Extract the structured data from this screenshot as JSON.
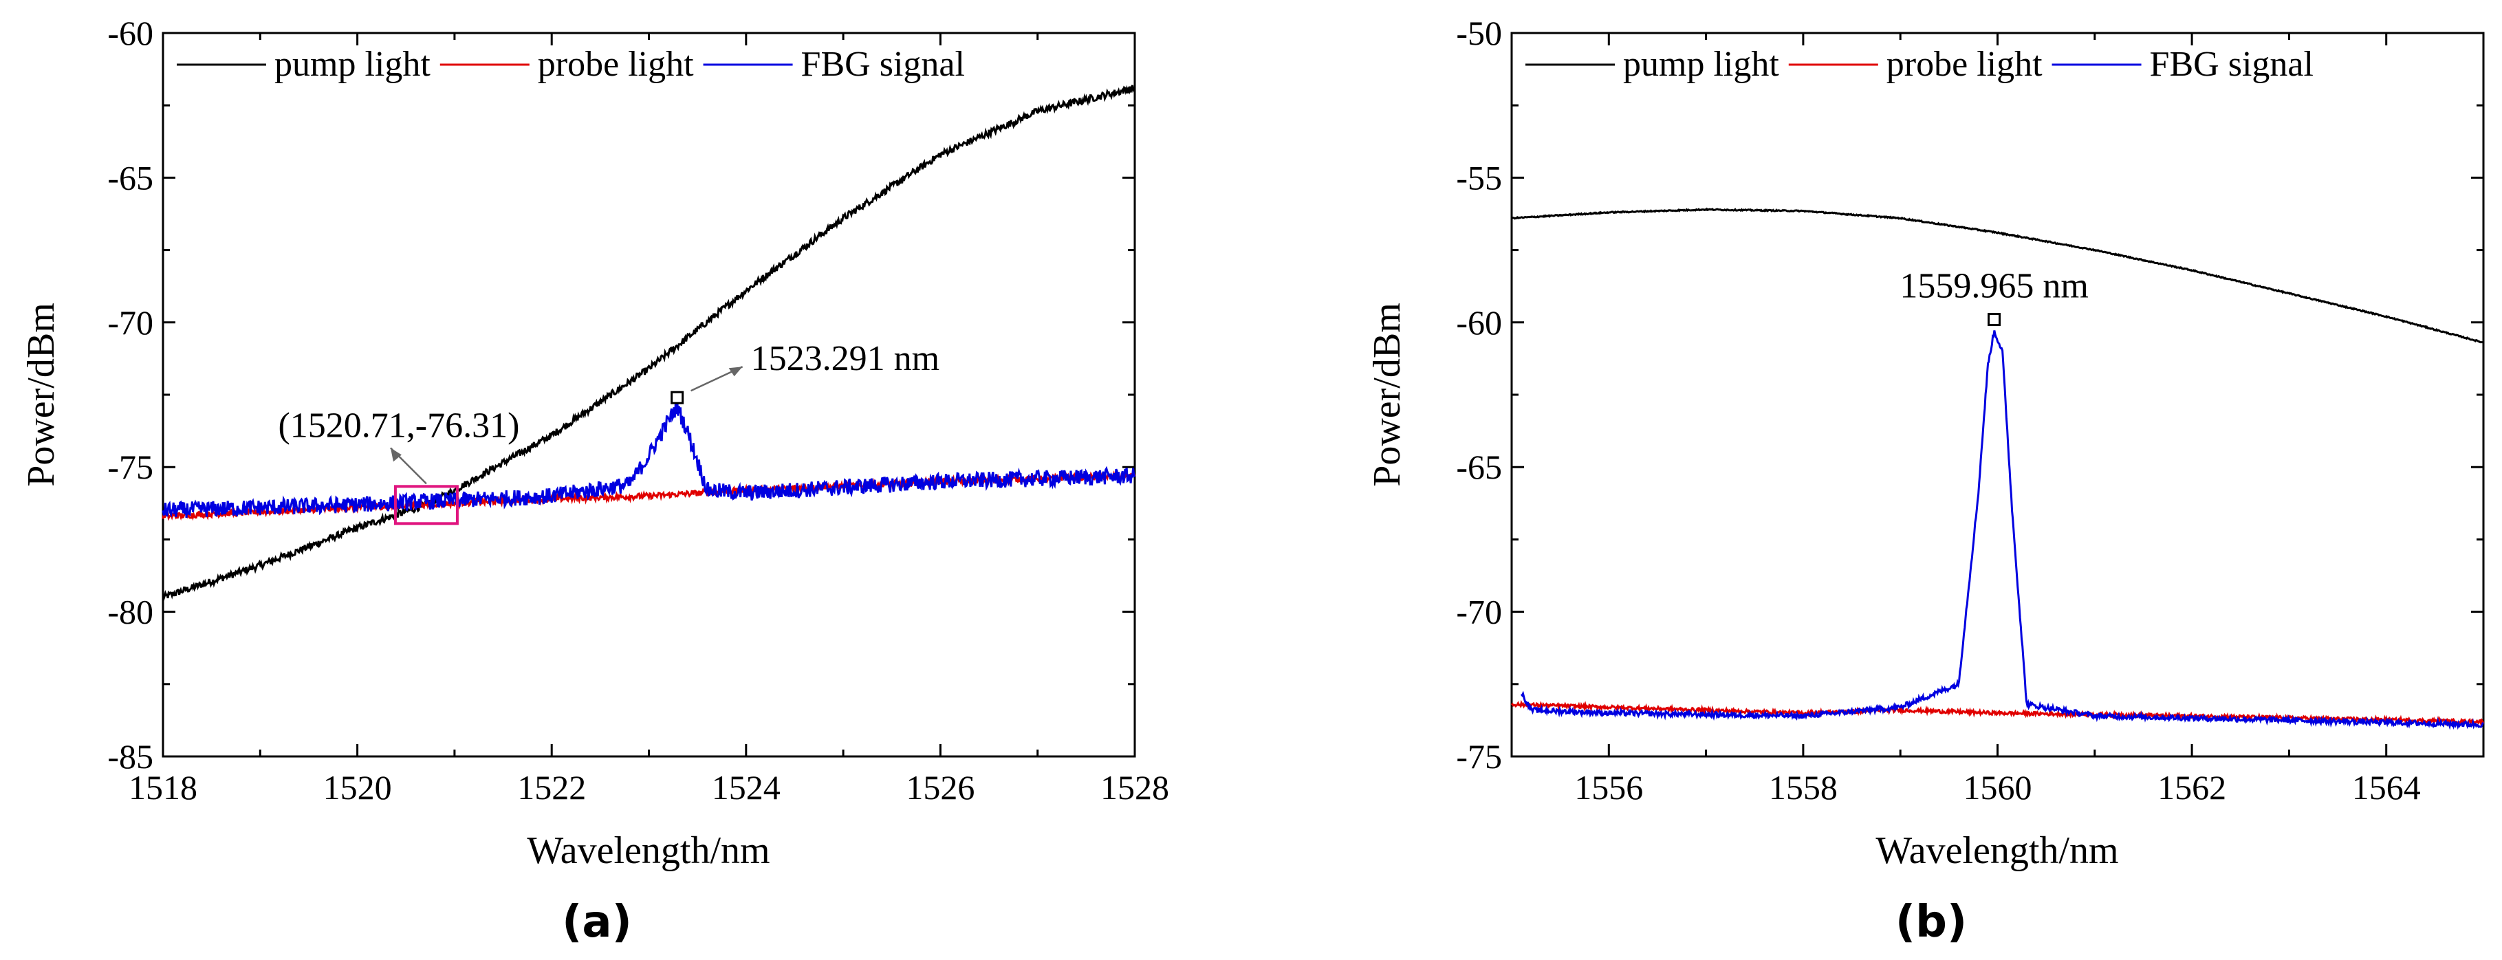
{
  "colors": {
    "pump": "#000000",
    "probe": "#e00000",
    "fbg": "#0000e0",
    "marker_box": "#e0157f",
    "arrow": "#666666"
  },
  "chart_data": [
    {
      "type": "line",
      "panel": "(a)",
      "xlabel": "Wavelength/nm",
      "ylabel": "Power/dBm",
      "xlim": [
        1518,
        1528
      ],
      "ylim": [
        -85,
        -60
      ],
      "xticks": [
        1518,
        1520,
        1522,
        1524,
        1526,
        1528
      ],
      "yticks": [
        -85,
        -80,
        -75,
        -70,
        -65,
        -60
      ],
      "legend": [
        "pump light",
        "probe light",
        "FBG signal"
      ],
      "series": [
        {
          "name": "pump light",
          "x": [
            1518,
            1519,
            1520,
            1520.71,
            1521,
            1522,
            1523,
            1524,
            1525,
            1526,
            1527,
            1528
          ],
          "y": [
            -79.5,
            -78.4,
            -77.1,
            -76.3,
            -75.8,
            -73.9,
            -71.6,
            -68.9,
            -66.4,
            -64.2,
            -62.7,
            -61.9
          ]
        },
        {
          "name": "probe light",
          "x": [
            1518,
            1520,
            1522,
            1523,
            1524,
            1526,
            1528
          ],
          "y": [
            -76.7,
            -76.4,
            -76.1,
            -76.0,
            -75.8,
            -75.5,
            -75.3
          ]
        },
        {
          "name": "FBG signal",
          "x": [
            1518,
            1520,
            1522,
            1522.8,
            1523.0,
            1523.2,
            1523.291,
            1523.4,
            1523.6,
            1524,
            1526,
            1528
          ],
          "y": [
            -76.5,
            -76.3,
            -76.0,
            -75.6,
            -74.6,
            -73.4,
            -72.9,
            -73.8,
            -75.8,
            -75.9,
            -75.5,
            -75.3
          ]
        }
      ],
      "annotations": [
        {
          "text": "1523.291 nm",
          "x": 1523.291,
          "y": -72.6
        },
        {
          "text": "(1520.71,-76.31)",
          "x": 1520.71,
          "y": -76.31
        }
      ]
    },
    {
      "type": "line",
      "panel": "(b)",
      "xlabel": "Wavelength/nm",
      "ylabel": "Power/dBm",
      "xlim": [
        1555,
        1565
      ],
      "ylim": [
        -75,
        -50
      ],
      "xticks": [
        1556,
        1558,
        1560,
        1562,
        1564
      ],
      "yticks": [
        -75,
        -70,
        -65,
        -60,
        -55,
        -50
      ],
      "legend": [
        "pump light",
        "probe light",
        "FBG signal"
      ],
      "series": [
        {
          "name": "pump light",
          "x": [
            1555,
            1556,
            1557,
            1558,
            1559,
            1560,
            1561,
            1562,
            1563,
            1564,
            1565
          ],
          "y": [
            -56.4,
            -56.2,
            -56.1,
            -56.15,
            -56.4,
            -56.9,
            -57.5,
            -58.2,
            -59.0,
            -59.8,
            -60.7
          ]
        },
        {
          "name": "probe light",
          "x": [
            1555,
            1556,
            1558,
            1559,
            1560,
            1562,
            1565
          ],
          "y": [
            -73.2,
            -73.3,
            -73.5,
            -73.4,
            -73.5,
            -73.6,
            -73.8
          ]
        },
        {
          "name": "FBG signal",
          "x": [
            1555.1,
            1555.2,
            1556,
            1558,
            1559,
            1559.6,
            1559.8,
            1559.9,
            1559.965,
            1560.05,
            1560.15,
            1560.3,
            1561,
            1565
          ],
          "y": [
            -72.8,
            -73.4,
            -73.5,
            -73.6,
            -73.3,
            -72.5,
            -66.0,
            -61.5,
            -60.3,
            -61.0,
            -66.5,
            -73.2,
            -73.6,
            -73.9
          ]
        }
      ],
      "annotations": [
        {
          "text": "1559.965 nm",
          "x": 1559.965,
          "y": -59.9
        }
      ]
    }
  ]
}
